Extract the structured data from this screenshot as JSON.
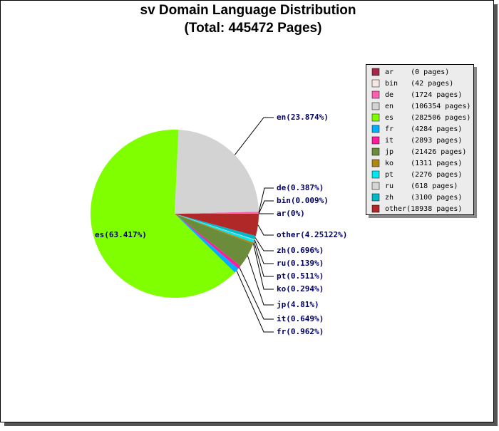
{
  "chart_data": {
    "type": "pie",
    "title": "sv Domain Language Distribution",
    "subtitle": "(Total: 445472 Pages)",
    "categories": [
      "ar",
      "bin",
      "de",
      "en",
      "es",
      "fr",
      "it",
      "jp",
      "ko",
      "pt",
      "ru",
      "zh",
      "other"
    ],
    "values": [
      0,
      0.009,
      0.387,
      23.874,
      63.417,
      0.962,
      0.649,
      4.81,
      0.294,
      0.511,
      0.139,
      0.696,
      4.25122
    ],
    "value_labels": [
      "ar(0%)",
      "bin(0.009%)",
      "de(0.387%)",
      "en(23.874%)",
      "es(63.417%)",
      "fr(0.962%)",
      "it(0.649%)",
      "jp(4.81%)",
      "ko(0.294%)",
      "pt(0.511%)",
      "ru(0.139%)",
      "zh(0.696%)",
      "other(4.25122%)"
    ],
    "legend_labels": [
      "ar    (0 pages)",
      "bin   (42 pages)",
      "de    (1724 pages)",
      "en    (106354 pages)",
      "es    (282506 pages)",
      "fr    (4284 pages)",
      "it    (2893 pages)",
      "jp    (21426 pages)",
      "ko    (1311 pages)",
      "pt    (2276 pages)",
      "ru    (618 pages)",
      "zh    (3100 pages)",
      "other(18938 pages)"
    ],
    "colors": [
      "#a3294a",
      "#f5e8e2",
      "#ff5fb0",
      "#d3d3d3",
      "#80ff00",
      "#00b0ff",
      "#ff1aa0",
      "#6b8c3a",
      "#b08510",
      "#00e8f0",
      "#d6d6d6",
      "#00b8c8",
      "#b02828"
    ],
    "legend": "top-right"
  }
}
